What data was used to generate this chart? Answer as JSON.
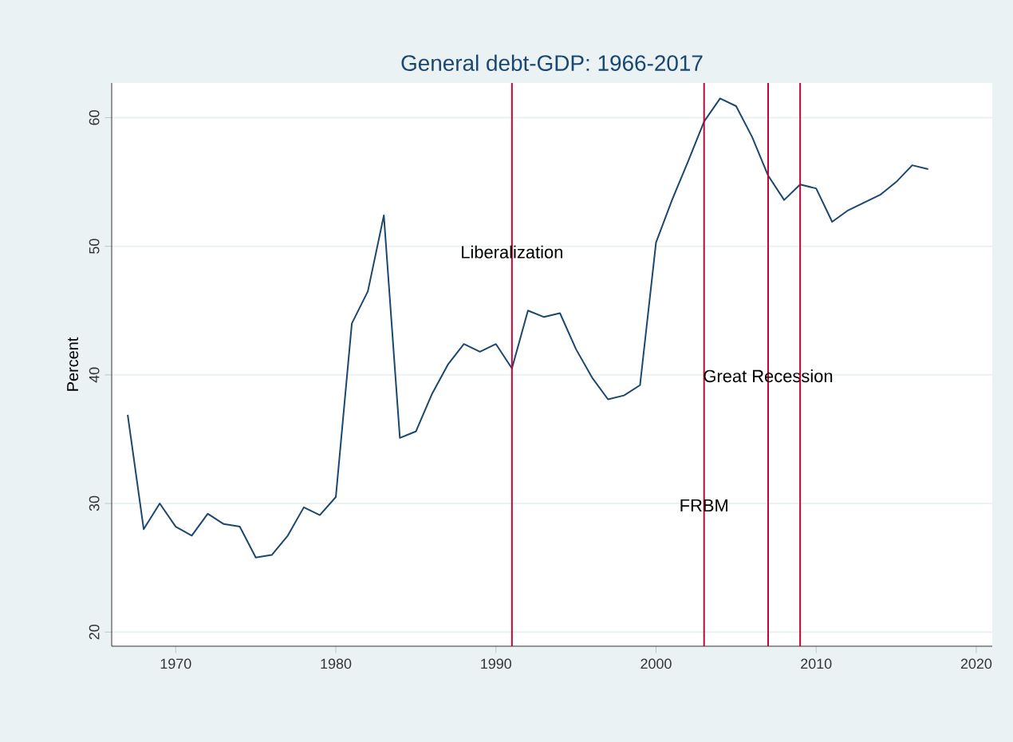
{
  "chart_data": {
    "type": "line",
    "title": "General debt-GDP: 1966-2017",
    "ylabel": "Percent",
    "x": [
      1967,
      1968,
      1969,
      1970,
      1971,
      1972,
      1973,
      1974,
      1975,
      1976,
      1977,
      1978,
      1979,
      1980,
      1981,
      1982,
      1983,
      1984,
      1985,
      1986,
      1987,
      1988,
      1989,
      1990,
      1991,
      1992,
      1993,
      1994,
      1995,
      1996,
      1997,
      1998,
      1999,
      2000,
      2001,
      2002,
      2003,
      2004,
      2005,
      2006,
      2007,
      2008,
      2009,
      2010,
      2011,
      2012,
      2013,
      2014,
      2015,
      2016,
      2017
    ],
    "series": [
      {
        "color": "#1a476f",
        "values": [
          36.9,
          28,
          30,
          28.2,
          27.5,
          29.2,
          28.4,
          28.2,
          25.8,
          26,
          27.5,
          29.7,
          29.1,
          30.5,
          44,
          46.5,
          52.4,
          35.1,
          35.6,
          38.5,
          40.8,
          42.4,
          41.8,
          42.4,
          40.5,
          45,
          44.5,
          44.8,
          42,
          39.8,
          38.1,
          38.4,
          39.2,
          50.3,
          53.6,
          56.6,
          59.7,
          61.5,
          60.9,
          58.5,
          55.5,
          53.6,
          54.8,
          54.5,
          51.9,
          52.8,
          53.4,
          54,
          55,
          56.3,
          56
        ]
      }
    ],
    "xlim": [
      1966,
      2021
    ],
    "ylim": [
      18.9,
      62.7
    ],
    "xticks": [
      1970,
      1980,
      1990,
      2000,
      2010,
      2020
    ],
    "yticks": [
      20,
      30,
      40,
      50,
      60
    ],
    "grid": "y",
    "ref_lines": [
      {
        "axis": "x",
        "value": 1991,
        "color": "#c10534",
        "label": "Liberalization"
      },
      {
        "axis": "x",
        "value": 2003,
        "color": "#c10534",
        "label": "FRBM"
      },
      {
        "axis": "x",
        "value": 2007,
        "color": "#c10534",
        "label": "Great Recession"
      },
      {
        "axis": "x",
        "value": 2009,
        "color": "#c10534"
      }
    ]
  }
}
